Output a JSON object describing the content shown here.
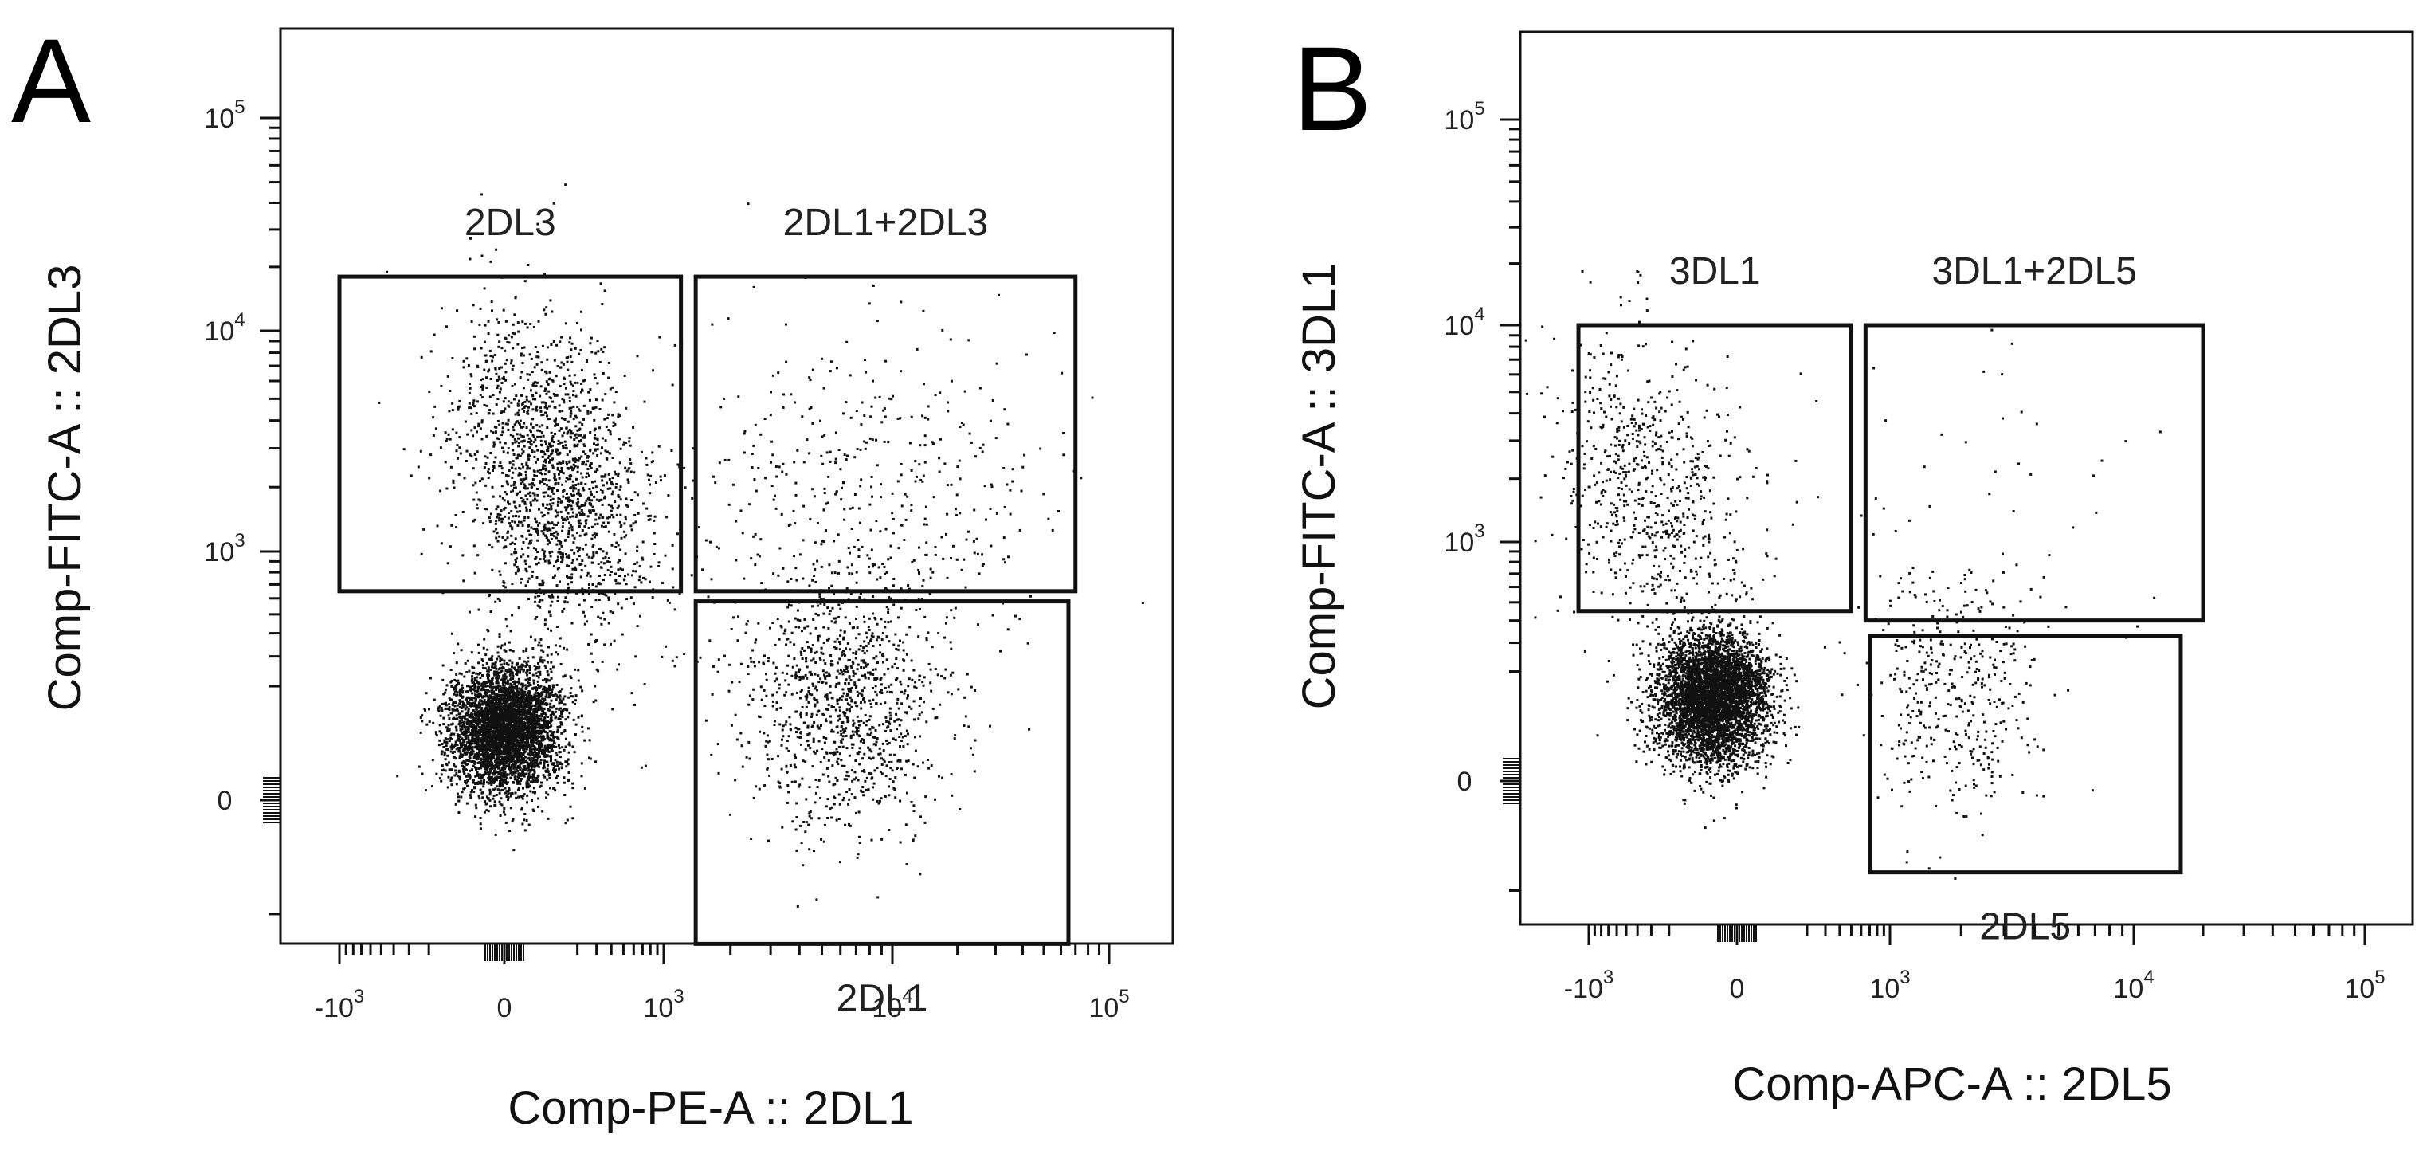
{
  "panels": {
    "A": {
      "letter": "A",
      "xlabel": "Comp-PE-A :: 2DL1",
      "ylabel": "Comp-FITC-A :: 2DL3"
    },
    "B": {
      "letter": "B",
      "xlabel": "Comp-APC-A :: 2DL5",
      "ylabel": "Comp-FITC-A :: 3DL1"
    }
  },
  "colors": {
    "dots": "#111111",
    "frame": "#111111",
    "gate": "#111111"
  },
  "chart_data": [
    {
      "type": "scatter",
      "subtype": "flow-cytometry-dot-plot",
      "panel": "A",
      "xlabel": "Comp-PE-A :: 2DL1",
      "ylabel": "Comp-FITC-A :: 2DL3",
      "x_scale": "biexponential",
      "y_scale": "biexponential",
      "xlim": [
        -2000,
        150000
      ],
      "ylim": [
        -1500,
        200000
      ],
      "x_ticks": [
        {
          "value": -1000,
          "base": "-10",
          "exp": "3"
        },
        {
          "value": 0,
          "base": "0",
          "exp": ""
        },
        {
          "value": 1000,
          "base": "10",
          "exp": "3"
        },
        {
          "value": 10000,
          "base": "10",
          "exp": "4"
        },
        {
          "value": 100000,
          "base": "10",
          "exp": "5"
        }
      ],
      "y_ticks": [
        {
          "value": 0,
          "base": "0",
          "exp": ""
        },
        {
          "value": 1000,
          "base": "10",
          "exp": "3"
        },
        {
          "value": 10000,
          "base": "10",
          "exp": "4"
        },
        {
          "value": 100000,
          "base": "10",
          "exp": "5"
        }
      ],
      "gates": [
        {
          "name": "2DL3",
          "label_position": "above",
          "x_range": [
            -1000,
            1200
          ],
          "y_range": [
            650,
            18000
          ]
        },
        {
          "name": "2DL1+2DL3",
          "label_position": "above",
          "x_range": [
            1400,
            70000
          ],
          "y_range": [
            650,
            18000
          ]
        },
        {
          "name": "2DL1",
          "label_position": "below",
          "x_range": [
            1400,
            65000
          ],
          "y_range": [
            -300,
            580
          ]
        }
      ],
      "populations": [
        {
          "description": "double-negative dense cluster",
          "x_center": 0,
          "y_center": 100,
          "count": 4200,
          "spread": "tight"
        },
        {
          "description": "2DL3 single positive",
          "x_center": 100,
          "y_center": 2200,
          "count": 1800,
          "spread": "medium"
        },
        {
          "description": "2DL1+2DL3 double positive",
          "x_center": 7000,
          "y_center": 1800,
          "count": 450,
          "spread": "wide"
        },
        {
          "description": "2DL1 single positive",
          "x_center": 6000,
          "y_center": 160,
          "count": 1100,
          "spread": "medium"
        }
      ]
    },
    {
      "type": "scatter",
      "subtype": "flow-cytometry-dot-plot",
      "panel": "B",
      "xlabel": "Comp-APC-A :: 2DL5",
      "ylabel": "Comp-FITC-A :: 3DL1",
      "x_scale": "biexponential",
      "y_scale": "biexponential",
      "xlim": [
        -1500,
        150000
      ],
      "ylim": [
        -1500,
        200000
      ],
      "x_ticks": [
        {
          "value": -1000,
          "base": "-10",
          "exp": "3"
        },
        {
          "value": 0,
          "base": "0",
          "exp": ""
        },
        {
          "value": 1000,
          "base": "10",
          "exp": "3"
        },
        {
          "value": 10000,
          "base": "10",
          "exp": "4"
        },
        {
          "value": 100000,
          "base": "10",
          "exp": "5"
        }
      ],
      "y_ticks": [
        {
          "value": 0,
          "base": "0",
          "exp": ""
        },
        {
          "value": 1000,
          "base": "10",
          "exp": "3"
        },
        {
          "value": 10000,
          "base": "10",
          "exp": "4"
        },
        {
          "value": 100000,
          "base": "10",
          "exp": "5"
        }
      ],
      "gates": [
        {
          "name": "3DL1",
          "label_position": "above",
          "x_range": [
            -1200,
            500
          ],
          "y_range": [
            450,
            10000
          ]
        },
        {
          "name": "3DL1+2DL5",
          "label_position": "above",
          "x_range": [
            650,
            20000
          ],
          "y_range": [
            400,
            10000
          ]
        },
        {
          "name": "2DL5",
          "label_position": "below",
          "x_range": [
            700,
            16000
          ],
          "y_range": [
            -150,
            330
          ]
        }
      ],
      "populations": [
        {
          "description": "double-negative dense cluster",
          "x_center": -50,
          "y_center": 130,
          "count": 4600,
          "spread": "tight"
        },
        {
          "description": "3DL1 single positive",
          "x_center": -300,
          "y_center": 1700,
          "count": 750,
          "spread": "medium"
        },
        {
          "description": "3DL1+2DL5 double positive",
          "x_center": 2500,
          "y_center": 1600,
          "count": 45,
          "spread": "wide"
        },
        {
          "description": "2DL5 single positive",
          "x_center": 1800,
          "y_center": 150,
          "count": 420,
          "spread": "medium"
        }
      ]
    }
  ]
}
